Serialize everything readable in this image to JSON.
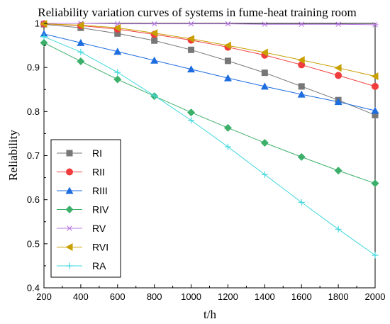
{
  "chart_data": {
    "type": "line",
    "title": "Reliability variation curves of systems in fume-heat training room",
    "xlabel": "t/h",
    "ylabel": "Reliability",
    "x": [
      200,
      400,
      600,
      800,
      1000,
      1200,
      1400,
      1600,
      1800,
      2000
    ],
    "xlim": [
      200,
      2000
    ],
    "ylim": [
      0.4,
      1.0
    ],
    "xticks": [
      "200",
      "400",
      "600",
      "800",
      "1000",
      "1200",
      "1400",
      "1600",
      "1800",
      "2000"
    ],
    "yticks": [
      "0.4",
      "0.5",
      "0.6",
      "0.7",
      "0.8",
      "0.9",
      "1"
    ],
    "legend_position": "bottom-left",
    "grid": false,
    "series": [
      {
        "name": "RI",
        "color": "#777777",
        "marker": "square",
        "values": [
          0.998,
          0.99,
          0.977,
          0.961,
          0.94,
          0.915,
          0.888,
          0.857,
          0.826,
          0.792
        ]
      },
      {
        "name": "RII",
        "color": "#f03c3c",
        "marker": "circle",
        "values": [
          0.999,
          0.995,
          0.987,
          0.975,
          0.962,
          0.946,
          0.928,
          0.906,
          0.882,
          0.857
        ]
      },
      {
        "name": "RIII",
        "color": "#1e6de0",
        "marker": "triangle-up",
        "values": [
          0.976,
          0.956,
          0.936,
          0.916,
          0.896,
          0.876,
          0.857,
          0.839,
          0.822,
          0.802
        ]
      },
      {
        "name": "RIV",
        "color": "#3cb06a",
        "marker": "diamond",
        "values": [
          0.956,
          0.914,
          0.873,
          0.835,
          0.798,
          0.763,
          0.729,
          0.697,
          0.666,
          0.637
        ]
      },
      {
        "name": "RV",
        "color": "#b678e0",
        "marker": "star",
        "values": [
          1.0,
          1.0,
          0.999,
          0.999,
          0.999,
          0.999,
          0.998,
          0.998,
          0.998,
          0.997
        ]
      },
      {
        "name": "RVI",
        "color": "#c8a000",
        "marker": "triangle-left",
        "values": [
          0.999,
          0.996,
          0.99,
          0.978,
          0.965,
          0.95,
          0.934,
          0.917,
          0.899,
          0.88
        ]
      },
      {
        "name": "RA",
        "color": "#40d8dc",
        "marker": "plus",
        "values": [
          0.97,
          0.935,
          0.889,
          0.836,
          0.78,
          0.72,
          0.657,
          0.594,
          0.533,
          0.474
        ]
      }
    ]
  }
}
